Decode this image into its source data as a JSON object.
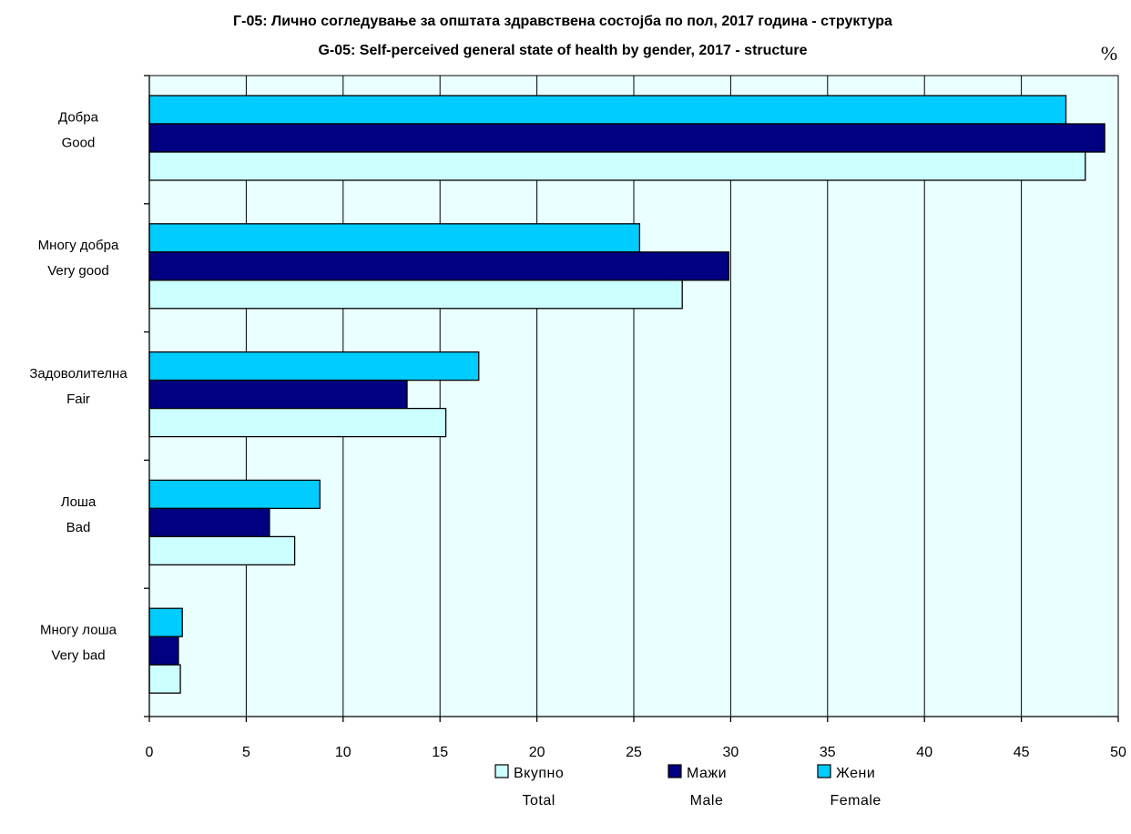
{
  "chart_data": {
    "type": "bar",
    "orientation": "horizontal",
    "title": "Г-05: Лично согледување за општата здравствена состојба по пол, 2017 година - структура",
    "subtitle": "G-05: Self-perceived general state of health by gender, 2017 - structure",
    "unit": "%",
    "categories": [
      {
        "mk": "Добра",
        "en": "Good"
      },
      {
        "mk": "Многу добра",
        "en": "Very good"
      },
      {
        "mk": "Задоволителна",
        "en": "Fair"
      },
      {
        "mk": "Лоша",
        "en": "Bad"
      },
      {
        "mk": "Многу лоша",
        "en": "Very bad"
      }
    ],
    "series": [
      {
        "name_mk": "Вкупно",
        "name_en": "Total",
        "color": "#CCFFFF",
        "values": [
          48.3,
          27.5,
          15.3,
          7.5,
          1.6
        ]
      },
      {
        "name_mk": "Мажи",
        "name_en": "Male",
        "color": "#000080",
        "values": [
          49.3,
          29.9,
          13.3,
          6.2,
          1.5
        ]
      },
      {
        "name_mk": "Жени",
        "name_en": "Female",
        "color": "#00CCFF",
        "values": [
          47.3,
          25.3,
          17.0,
          8.8,
          1.7
        ]
      }
    ],
    "xlim": [
      0,
      50
    ],
    "xticks": [
      "0",
      "5",
      "10",
      "15",
      "20",
      "25",
      "30",
      "35",
      "40",
      "45",
      "50"
    ],
    "grid": true,
    "plot_background": "#EAFFFF",
    "legend_position": "bottom"
  }
}
